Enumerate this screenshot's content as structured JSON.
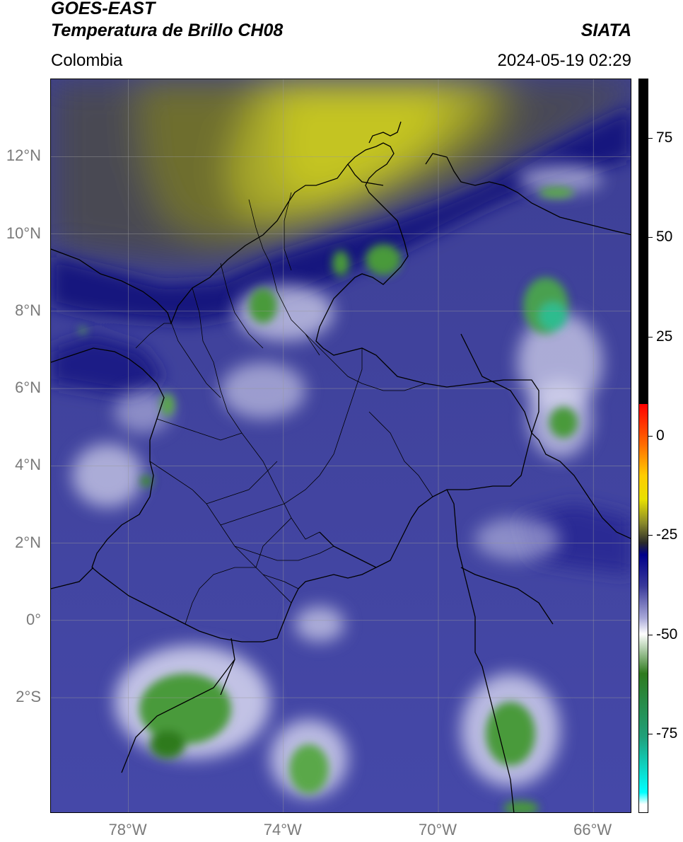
{
  "header": {
    "satellite": "GOES-EAST",
    "product": "Temperatura de Brillo CH08",
    "region": "Colombia",
    "organization": "SIATA",
    "datetime": "2024-05-19 02:29"
  },
  "map": {
    "extent": {
      "lon_min": -80,
      "lon_max": -65,
      "lat_min": -5,
      "lat_max": 14
    },
    "lat_ticks": [
      {
        "value": 12,
        "label": "12°N"
      },
      {
        "value": 10,
        "label": "10°N"
      },
      {
        "value": 8,
        "label": "8°N"
      },
      {
        "value": 6,
        "label": "6°N"
      },
      {
        "value": 4,
        "label": "4°N"
      },
      {
        "value": 2,
        "label": "2°N"
      },
      {
        "value": 0,
        "label": "0°"
      },
      {
        "value": -2,
        "label": "2°S"
      }
    ],
    "lon_ticks": [
      {
        "value": -78,
        "label": "78°W"
      },
      {
        "value": -74,
        "label": "74°W"
      },
      {
        "value": -70,
        "label": "70°W"
      },
      {
        "value": -66,
        "label": "66°W"
      }
    ],
    "gridlines": true
  },
  "colorbar": {
    "min": -95,
    "max": 90,
    "ticks": [
      {
        "value": 75,
        "label": "75"
      },
      {
        "value": 50,
        "label": "50"
      },
      {
        "value": 25,
        "label": "25"
      },
      {
        "value": 0,
        "label": "0"
      },
      {
        "value": -25,
        "label": "-25"
      },
      {
        "value": -50,
        "label": "-50"
      },
      {
        "value": -75,
        "label": "-75"
      }
    ],
    "stops": [
      {
        "value": 90,
        "color": "#000000"
      },
      {
        "value": 8,
        "color": "#000000"
      },
      {
        "value": 8,
        "color": "#ff0000"
      },
      {
        "value": -2,
        "color": "#ff6a00"
      },
      {
        "value": -10,
        "color": "#ffcc00"
      },
      {
        "value": -16,
        "color": "#e8e000"
      },
      {
        "value": -22,
        "color": "#8a8a2a"
      },
      {
        "value": -27,
        "color": "#2a2a2a"
      },
      {
        "value": -30,
        "color": "#00008a"
      },
      {
        "value": -38,
        "color": "#3a3a9a"
      },
      {
        "value": -46,
        "color": "#a8a8d8"
      },
      {
        "value": -50,
        "color": "#ffffff"
      },
      {
        "value": -60,
        "color": "#2e7a1e"
      },
      {
        "value": -76,
        "color": "#20a07a"
      },
      {
        "value": -90,
        "color": "#00ffff"
      },
      {
        "value": -93,
        "color": "#ffffff"
      },
      {
        "value": -95,
        "color": "#ffffff"
      }
    ]
  }
}
